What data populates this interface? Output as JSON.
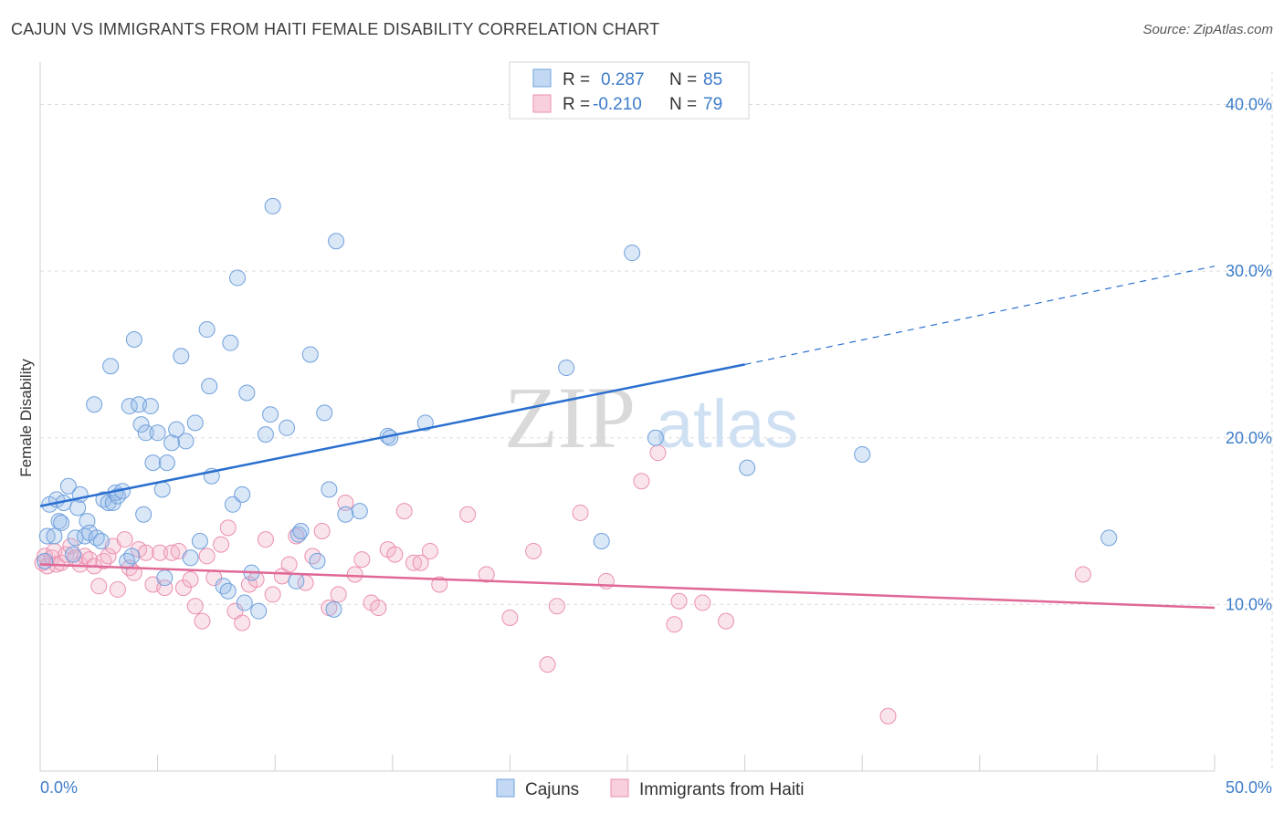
{
  "header": {
    "title": "CAJUN VS IMMIGRANTS FROM HAITI FEMALE DISABILITY CORRELATION CHART",
    "source": "Source: ZipAtlas.com"
  },
  "watermark": {
    "zip": "ZIP",
    "atlas": "atlas"
  },
  "legend": {
    "rows": [
      {
        "r_label": "R = ",
        "r_value": "0.287",
        "n_label": "N = ",
        "n_value": "85"
      },
      {
        "r_label": "R = ",
        "r_value": "-0.210",
        "n_label": "N = ",
        "n_value": "79"
      }
    ]
  },
  "chart_data": {
    "type": "scatter",
    "title": "CAJUN VS IMMIGRANTS FROM HAITI FEMALE DISABILITY CORRELATION CHART",
    "xlabel": "",
    "ylabel": "Female Disability",
    "xlim": [
      0,
      50
    ],
    "ylim": [
      0,
      42
    ],
    "x_tick_labels": [
      "0.0%",
      "50.0%"
    ],
    "y_ticks": [
      10,
      20,
      30,
      40
    ],
    "y_tick_labels": [
      "10.0%",
      "20.0%",
      "30.0%",
      "40.0%"
    ],
    "grid": true,
    "legend_placement": "top-center",
    "colors": {
      "cajuns": "#6fa0dc",
      "haiti": "#eb8fae",
      "cajuns_line": "#2a6fcf",
      "haiti_line": "#e06896",
      "value_text": "#3d7cc9"
    },
    "series": [
      {
        "name": "Cajuns",
        "r": 0.287,
        "n": 85,
        "trend": {
          "x": [
            0,
            30,
            50
          ],
          "y": [
            15.9,
            24.4,
            30.3
          ]
        },
        "points": [
          [
            0.2,
            12.6
          ],
          [
            0.3,
            14.1
          ],
          [
            0.4,
            16.0
          ],
          [
            0.6,
            14.1
          ],
          [
            0.7,
            16.3
          ],
          [
            0.8,
            15.0
          ],
          [
            0.9,
            14.9
          ],
          [
            1.0,
            16.1
          ],
          [
            1.2,
            17.1
          ],
          [
            1.4,
            13.0
          ],
          [
            1.5,
            14.0
          ],
          [
            1.6,
            15.8
          ],
          [
            1.7,
            16.6
          ],
          [
            1.9,
            14.1
          ],
          [
            2.0,
            15.0
          ],
          [
            2.1,
            14.3
          ],
          [
            2.3,
            22.0
          ],
          [
            2.4,
            14.0
          ],
          [
            2.6,
            13.8
          ],
          [
            2.7,
            16.3
          ],
          [
            2.9,
            16.1
          ],
          [
            3.0,
            24.3
          ],
          [
            3.1,
            16.1
          ],
          [
            3.2,
            16.7
          ],
          [
            3.3,
            16.5
          ],
          [
            3.5,
            16.8
          ],
          [
            3.7,
            12.6
          ],
          [
            3.8,
            21.9
          ],
          [
            3.9,
            12.9
          ],
          [
            4.0,
            25.9
          ],
          [
            4.2,
            22.0
          ],
          [
            4.3,
            20.8
          ],
          [
            4.4,
            15.4
          ],
          [
            4.5,
            20.3
          ],
          [
            4.7,
            21.9
          ],
          [
            4.8,
            18.5
          ],
          [
            5.0,
            20.3
          ],
          [
            5.2,
            16.9
          ],
          [
            5.3,
            11.6
          ],
          [
            5.4,
            18.5
          ],
          [
            5.6,
            19.7
          ],
          [
            5.8,
            20.5
          ],
          [
            6.0,
            24.9
          ],
          [
            6.2,
            19.8
          ],
          [
            6.4,
            12.8
          ],
          [
            6.6,
            20.9
          ],
          [
            6.8,
            13.8
          ],
          [
            7.1,
            26.5
          ],
          [
            7.2,
            23.1
          ],
          [
            7.3,
            17.7
          ],
          [
            7.8,
            11.1
          ],
          [
            8.0,
            10.8
          ],
          [
            8.1,
            25.7
          ],
          [
            8.2,
            16.0
          ],
          [
            8.4,
            29.6
          ],
          [
            8.6,
            16.6
          ],
          [
            8.7,
            10.1
          ],
          [
            8.8,
            22.7
          ],
          [
            9.0,
            11.9
          ],
          [
            9.3,
            9.6
          ],
          [
            9.6,
            20.2
          ],
          [
            9.8,
            21.4
          ],
          [
            9.9,
            33.9
          ],
          [
            10.5,
            20.6
          ],
          [
            10.9,
            11.4
          ],
          [
            11.0,
            14.2
          ],
          [
            11.1,
            14.4
          ],
          [
            11.5,
            25.0
          ],
          [
            11.8,
            12.6
          ],
          [
            12.1,
            21.5
          ],
          [
            12.3,
            16.9
          ],
          [
            12.5,
            9.7
          ],
          [
            12.6,
            31.8
          ],
          [
            13.0,
            15.4
          ],
          [
            13.6,
            15.6
          ],
          [
            14.8,
            20.1
          ],
          [
            14.9,
            20.0
          ],
          [
            16.4,
            20.9
          ],
          [
            22.4,
            24.2
          ],
          [
            23.9,
            13.8
          ],
          [
            25.2,
            31.1
          ],
          [
            26.2,
            20.0
          ],
          [
            30.1,
            18.2
          ],
          [
            35.0,
            19.0
          ],
          [
            45.5,
            14.0
          ]
        ]
      },
      {
        "name": "Immigrants from Haiti",
        "r": -0.21,
        "n": 79,
        "trend": {
          "x": [
            0,
            50
          ],
          "y": [
            12.4,
            9.8
          ]
        },
        "points": [
          [
            0.1,
            12.5
          ],
          [
            0.2,
            12.9
          ],
          [
            0.3,
            12.3
          ],
          [
            0.5,
            12.8
          ],
          [
            0.6,
            13.2
          ],
          [
            0.7,
            12.4
          ],
          [
            0.9,
            12.5
          ],
          [
            1.1,
            13.0
          ],
          [
            1.3,
            13.5
          ],
          [
            1.5,
            12.8
          ],
          [
            1.7,
            12.4
          ],
          [
            1.9,
            12.9
          ],
          [
            2.1,
            12.7
          ],
          [
            2.3,
            12.3
          ],
          [
            2.5,
            11.1
          ],
          [
            2.7,
            12.6
          ],
          [
            2.9,
            12.9
          ],
          [
            3.1,
            13.5
          ],
          [
            3.3,
            10.9
          ],
          [
            3.6,
            13.9
          ],
          [
            3.8,
            12.2
          ],
          [
            4.0,
            11.9
          ],
          [
            4.2,
            13.3
          ],
          [
            4.5,
            13.1
          ],
          [
            4.8,
            11.2
          ],
          [
            5.1,
            13.1
          ],
          [
            5.3,
            11.0
          ],
          [
            5.6,
            13.1
          ],
          [
            5.9,
            13.2
          ],
          [
            6.1,
            11.0
          ],
          [
            6.4,
            11.5
          ],
          [
            6.6,
            9.9
          ],
          [
            6.9,
            9.0
          ],
          [
            7.1,
            12.9
          ],
          [
            7.4,
            11.6
          ],
          [
            7.7,
            13.6
          ],
          [
            8.0,
            14.6
          ],
          [
            8.3,
            9.6
          ],
          [
            8.6,
            8.9
          ],
          [
            8.9,
            11.2
          ],
          [
            9.2,
            11.5
          ],
          [
            9.6,
            13.9
          ],
          [
            9.9,
            10.6
          ],
          [
            10.3,
            11.7
          ],
          [
            10.6,
            12.4
          ],
          [
            10.9,
            14.1
          ],
          [
            11.3,
            11.3
          ],
          [
            11.6,
            12.9
          ],
          [
            12.0,
            14.4
          ],
          [
            12.3,
            9.8
          ],
          [
            12.7,
            10.6
          ],
          [
            13.0,
            16.1
          ],
          [
            13.4,
            11.8
          ],
          [
            13.7,
            12.7
          ],
          [
            14.1,
            10.1
          ],
          [
            14.4,
            9.8
          ],
          [
            14.8,
            13.3
          ],
          [
            15.1,
            13.0
          ],
          [
            15.5,
            15.6
          ],
          [
            15.9,
            12.5
          ],
          [
            16.2,
            12.5
          ],
          [
            16.6,
            13.2
          ],
          [
            17.0,
            11.2
          ],
          [
            18.2,
            15.4
          ],
          [
            19.0,
            11.8
          ],
          [
            20.0,
            9.2
          ],
          [
            21.0,
            13.2
          ],
          [
            21.6,
            6.4
          ],
          [
            22.0,
            9.9
          ],
          [
            23.0,
            15.5
          ],
          [
            24.1,
            11.4
          ],
          [
            25.6,
            17.4
          ],
          [
            26.3,
            19.1
          ],
          [
            27.0,
            8.8
          ],
          [
            27.2,
            10.2
          ],
          [
            28.2,
            10.1
          ],
          [
            29.2,
            9.0
          ],
          [
            36.1,
            3.3
          ],
          [
            44.4,
            11.8
          ]
        ]
      }
    ]
  }
}
